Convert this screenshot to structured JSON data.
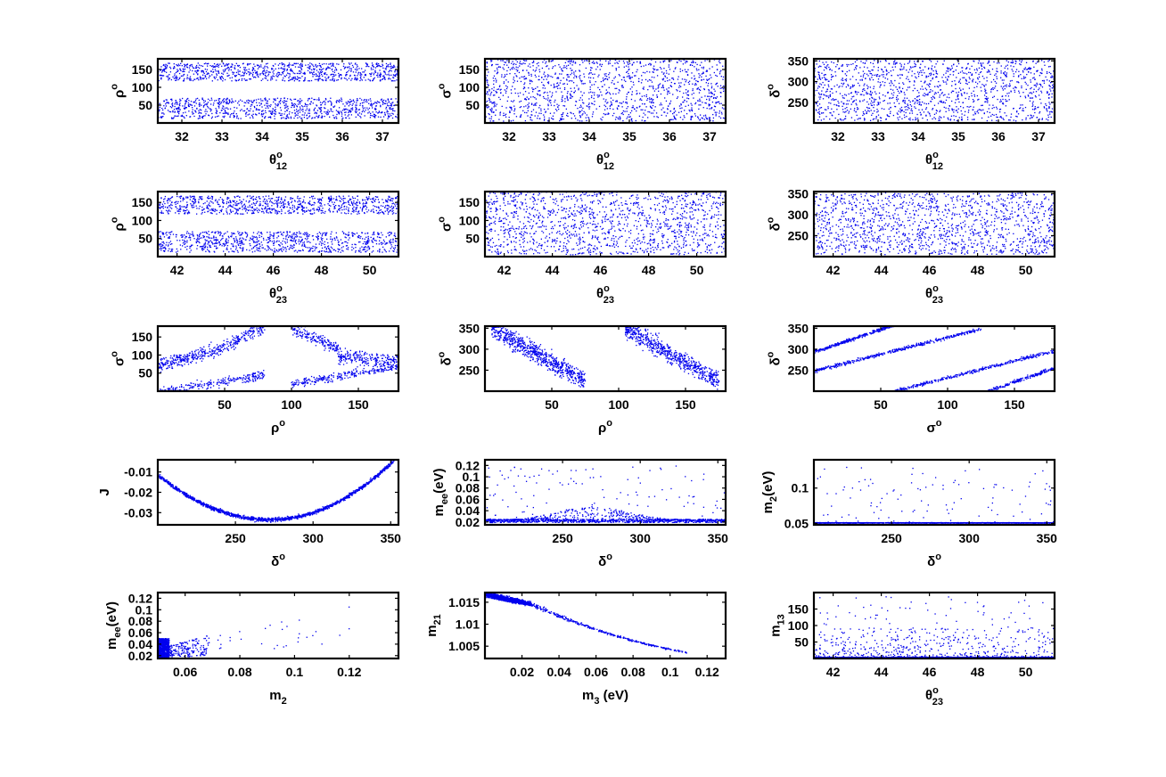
{
  "figure": {
    "point_color": "#0000ee",
    "background": "#ffffff",
    "layout": "5 rows x 3 columns scatter grid"
  },
  "chart_data": [
    {
      "type": "scatter",
      "title": "",
      "xlabel": {
        "base": "θ",
        "sup": "o",
        "sub": "12"
      },
      "ylabel": {
        "base": "ρ",
        "sup": "o",
        "sub": ""
      },
      "xlim": [
        31.4,
        37.4
      ],
      "ylim": [
        0,
        180
      ],
      "xticks": [
        "32",
        "33",
        "34",
        "35",
        "36",
        "37"
      ],
      "yticks": [
        "50",
        "100",
        "150"
      ],
      "series": [
        {
          "pattern": "two-bands",
          "bands": [
            [
              12,
              70
            ],
            [
              118,
              168
            ]
          ],
          "points": 1800
        }
      ]
    },
    {
      "type": "scatter",
      "title": "",
      "xlabel": {
        "base": "θ",
        "sup": "o",
        "sub": "12"
      },
      "ylabel": {
        "base": "σ",
        "sup": "o",
        "sub": ""
      },
      "xlim": [
        31.4,
        37.4
      ],
      "ylim": [
        0,
        180
      ],
      "xticks": [
        "32",
        "33",
        "34",
        "35",
        "36",
        "37"
      ],
      "yticks": [
        "50",
        "100",
        "150"
      ],
      "series": [
        {
          "pattern": "uniform",
          "range": [
            5,
            180
          ],
          "points": 1400
        }
      ]
    },
    {
      "type": "scatter",
      "title": "",
      "xlabel": {
        "base": "θ",
        "sup": "o",
        "sub": "12"
      },
      "ylabel": {
        "base": "δ",
        "sup": "o",
        "sub": ""
      },
      "xlim": [
        31.4,
        37.4
      ],
      "ylim": [
        200,
        355
      ],
      "xticks": [
        "32",
        "33",
        "34",
        "35",
        "36",
        "37"
      ],
      "yticks": [
        "250",
        "300",
        "350"
      ],
      "series": [
        {
          "pattern": "uniform",
          "range": [
            205,
            352
          ],
          "points": 1400
        }
      ]
    },
    {
      "type": "scatter",
      "title": "",
      "xlabel": {
        "base": "θ",
        "sup": "o",
        "sub": "23"
      },
      "ylabel": {
        "base": "ρ",
        "sup": "o",
        "sub": ""
      },
      "xlim": [
        41.2,
        51.2
      ],
      "ylim": [
        0,
        180
      ],
      "xticks": [
        "42",
        "44",
        "46",
        "48",
        "50"
      ],
      "yticks": [
        "50",
        "100",
        "150"
      ],
      "series": [
        {
          "pattern": "two-bands",
          "bands": [
            [
              12,
              70
            ],
            [
              118,
              168
            ]
          ],
          "points": 1800
        }
      ]
    },
    {
      "type": "scatter",
      "title": "",
      "xlabel": {
        "base": "θ",
        "sup": "o",
        "sub": "23"
      },
      "ylabel": {
        "base": "σ",
        "sup": "o",
        "sub": ""
      },
      "xlim": [
        41.2,
        51.2
      ],
      "ylim": [
        0,
        180
      ],
      "xticks": [
        "42",
        "44",
        "46",
        "48",
        "50"
      ],
      "yticks": [
        "50",
        "100",
        "150"
      ],
      "series": [
        {
          "pattern": "uniform",
          "range": [
            5,
            180
          ],
          "points": 1400
        }
      ]
    },
    {
      "type": "scatter",
      "title": "",
      "xlabel": {
        "base": "θ",
        "sup": "o",
        "sub": "23"
      },
      "ylabel": {
        "base": "δ",
        "sup": "o",
        "sub": ""
      },
      "xlim": [
        41.2,
        51.2
      ],
      "ylim": [
        200,
        355
      ],
      "xticks": [
        "42",
        "44",
        "46",
        "48",
        "50"
      ],
      "yticks": [
        "250",
        "300",
        "350"
      ],
      "series": [
        {
          "pattern": "uniform",
          "range": [
            205,
            352
          ],
          "points": 1400
        }
      ]
    },
    {
      "type": "scatter",
      "title": "",
      "xlabel": {
        "base": "ρ",
        "sup": "o",
        "sub": ""
      },
      "ylabel": {
        "base": "σ",
        "sup": "o",
        "sub": ""
      },
      "xlim": [
        0,
        180
      ],
      "ylim": [
        0,
        180
      ],
      "xticks": [
        "50",
        "100",
        "150"
      ],
      "yticks": [
        "50",
        "100",
        "150"
      ],
      "series": [
        {
          "pattern": "sigma-vs-rho",
          "points": 1400
        }
      ]
    },
    {
      "type": "scatter",
      "title": "",
      "xlabel": {
        "base": "ρ",
        "sup": "o",
        "sub": ""
      },
      "ylabel": {
        "base": "δ",
        "sup": "o",
        "sub": ""
      },
      "xlim": [
        0,
        180
      ],
      "ylim": [
        200,
        355
      ],
      "xticks": [
        "50",
        "100",
        "150"
      ],
      "yticks": [
        "250",
        "300",
        "350"
      ],
      "series": [
        {
          "pattern": "delta-vs-rho",
          "points": 1400
        }
      ]
    },
    {
      "type": "scatter",
      "title": "",
      "xlabel": {
        "base": "σ",
        "sup": "o",
        "sub": ""
      },
      "ylabel": {
        "base": "δ",
        "sup": "o",
        "sub": ""
      },
      "xlim": [
        0,
        180
      ],
      "ylim": [
        200,
        355
      ],
      "xticks": [
        "50",
        "100",
        "150"
      ],
      "yticks": [
        "250",
        "300",
        "350"
      ],
      "series": [
        {
          "pattern": "delta-vs-sigma",
          "points": 1400
        }
      ]
    },
    {
      "type": "scatter",
      "title": "",
      "xlabel": {
        "base": "δ",
        "sup": "o",
        "sub": ""
      },
      "ylabel": {
        "base": "J",
        "sup": "",
        "sub": ""
      },
      "xlim": [
        200,
        355
      ],
      "ylim": [
        -0.036,
        -0.004
      ],
      "xticks": [
        "250",
        "300",
        "350"
      ],
      "yticks": [
        "-0.01",
        "-0.02",
        "-0.03"
      ],
      "series": [
        {
          "pattern": "J-parabola",
          "curve": {
            "vertex_x": 272,
            "vertex_y": -0.0335,
            "left_end": [
              200,
              -0.0115
            ],
            "right_end": [
              352,
              -0.0045
            ]
          },
          "points": 1500
        }
      ]
    },
    {
      "type": "scatter",
      "title": "",
      "xlabel": {
        "base": "δ",
        "sup": "o",
        "sub": ""
      },
      "ylabel": {
        "base": "m",
        "sup": "",
        "sub": "ee",
        "suffix": "(eV)"
      },
      "xlim": [
        200,
        355
      ],
      "ylim": [
        0.015,
        0.13
      ],
      "xticks": [
        "250",
        "300",
        "350"
      ],
      "yticks": [
        "0.02",
        "0.04",
        "0.06",
        "0.08",
        "0.1",
        "0.12"
      ],
      "series": [
        {
          "pattern": "mee-vs-delta",
          "peak": {
            "x": 270,
            "y": 0.048
          },
          "floor": 0.019,
          "points": 1400
        }
      ]
    },
    {
      "type": "scatter",
      "title": "",
      "xlabel": {
        "base": "δ",
        "sup": "o",
        "sub": ""
      },
      "ylabel": {
        "base": "m",
        "sup": "",
        "sub": "2",
        "suffix": "(eV)"
      },
      "xlim": [
        200,
        355
      ],
      "ylim": [
        0.048,
        0.14
      ],
      "xticks": [
        "250",
        "300",
        "350"
      ],
      "yticks": [
        "0.05",
        "0.1"
      ],
      "series": [
        {
          "pattern": "m2-vs-delta",
          "floor": 0.0505,
          "points": 1400
        }
      ]
    },
    {
      "type": "scatter",
      "title": "",
      "xlabel": {
        "base": "m",
        "sup": "",
        "sub": "2"
      },
      "ylabel": {
        "base": "m",
        "sup": "",
        "sub": "ee",
        "suffix": "(eV)"
      },
      "xlim": [
        0.05,
        0.138
      ],
      "ylim": [
        0.015,
        0.13
      ],
      "xticks": [
        "0.06",
        "0.08",
        "0.1",
        "0.12"
      ],
      "yticks": [
        "0.02",
        "0.04",
        "0.06",
        "0.08",
        "0.1",
        "0.12"
      ],
      "series": [
        {
          "pattern": "mee-vs-m2",
          "cluster": {
            "x": [
              0.05,
              0.053
            ],
            "y": [
              0.015,
              0.05
            ]
          },
          "points": 1400
        }
      ]
    },
    {
      "type": "scatter",
      "title": "",
      "xlabel": {
        "base": "m",
        "sup": "",
        "sub": "3",
        "suffix": " (eV)"
      },
      "ylabel": {
        "base": "m",
        "sup": "",
        "sub": "21"
      },
      "xlim": [
        0,
        0.13
      ],
      "ylim": [
        1.0022,
        1.0172
      ],
      "xticks": [
        "0.02",
        "0.04",
        "0.06",
        "0.08",
        "0.1",
        "0.12"
      ],
      "yticks": [
        "1.005",
        "1.01",
        "1.015"
      ],
      "series": [
        {
          "pattern": "m21-vs-m3",
          "points": 1400
        }
      ]
    },
    {
      "type": "scatter",
      "title": "",
      "xlabel": {
        "base": "θ",
        "sup": "o",
        "sub": "23"
      },
      "ylabel": {
        "base": "m",
        "sup": "",
        "sub": "13"
      },
      "xlim": [
        41.2,
        51.2
      ],
      "ylim": [
        0,
        200
      ],
      "xticks": [
        "42",
        "44",
        "46",
        "48",
        "50"
      ],
      "yticks": [
        "50",
        "100",
        "150"
      ],
      "series": [
        {
          "pattern": "m13-vs-theta23",
          "floor": 3,
          "points": 1400
        }
      ]
    }
  ]
}
